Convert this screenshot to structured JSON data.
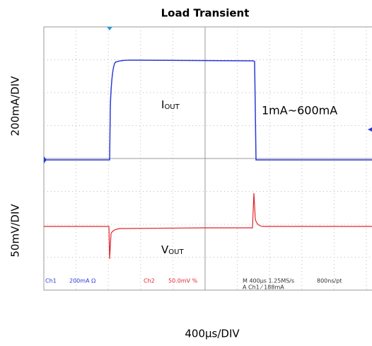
{
  "title": "Load Transient",
  "axes": {
    "current_scale": "200mA/DIV",
    "voltage_scale": "50mV/DIV",
    "time_scale": "400µs/DIV"
  },
  "annotations": {
    "iout_main": "I",
    "iout_sub": "OUT",
    "range": "1mA~600mA",
    "vout_main": "V",
    "vout_sub": "OUT"
  },
  "scope_readout": {
    "ch1": "Ch1",
    "ch1_scale": "200mA  Ω",
    "ch2": "Ch2",
    "ch2_scale": "50.0mV  %",
    "timebase": "M 400µs 1.25MS/s",
    "resolution": "800ns/pt",
    "trigger": "A  Ch1  ⁄  188mA"
  }
}
